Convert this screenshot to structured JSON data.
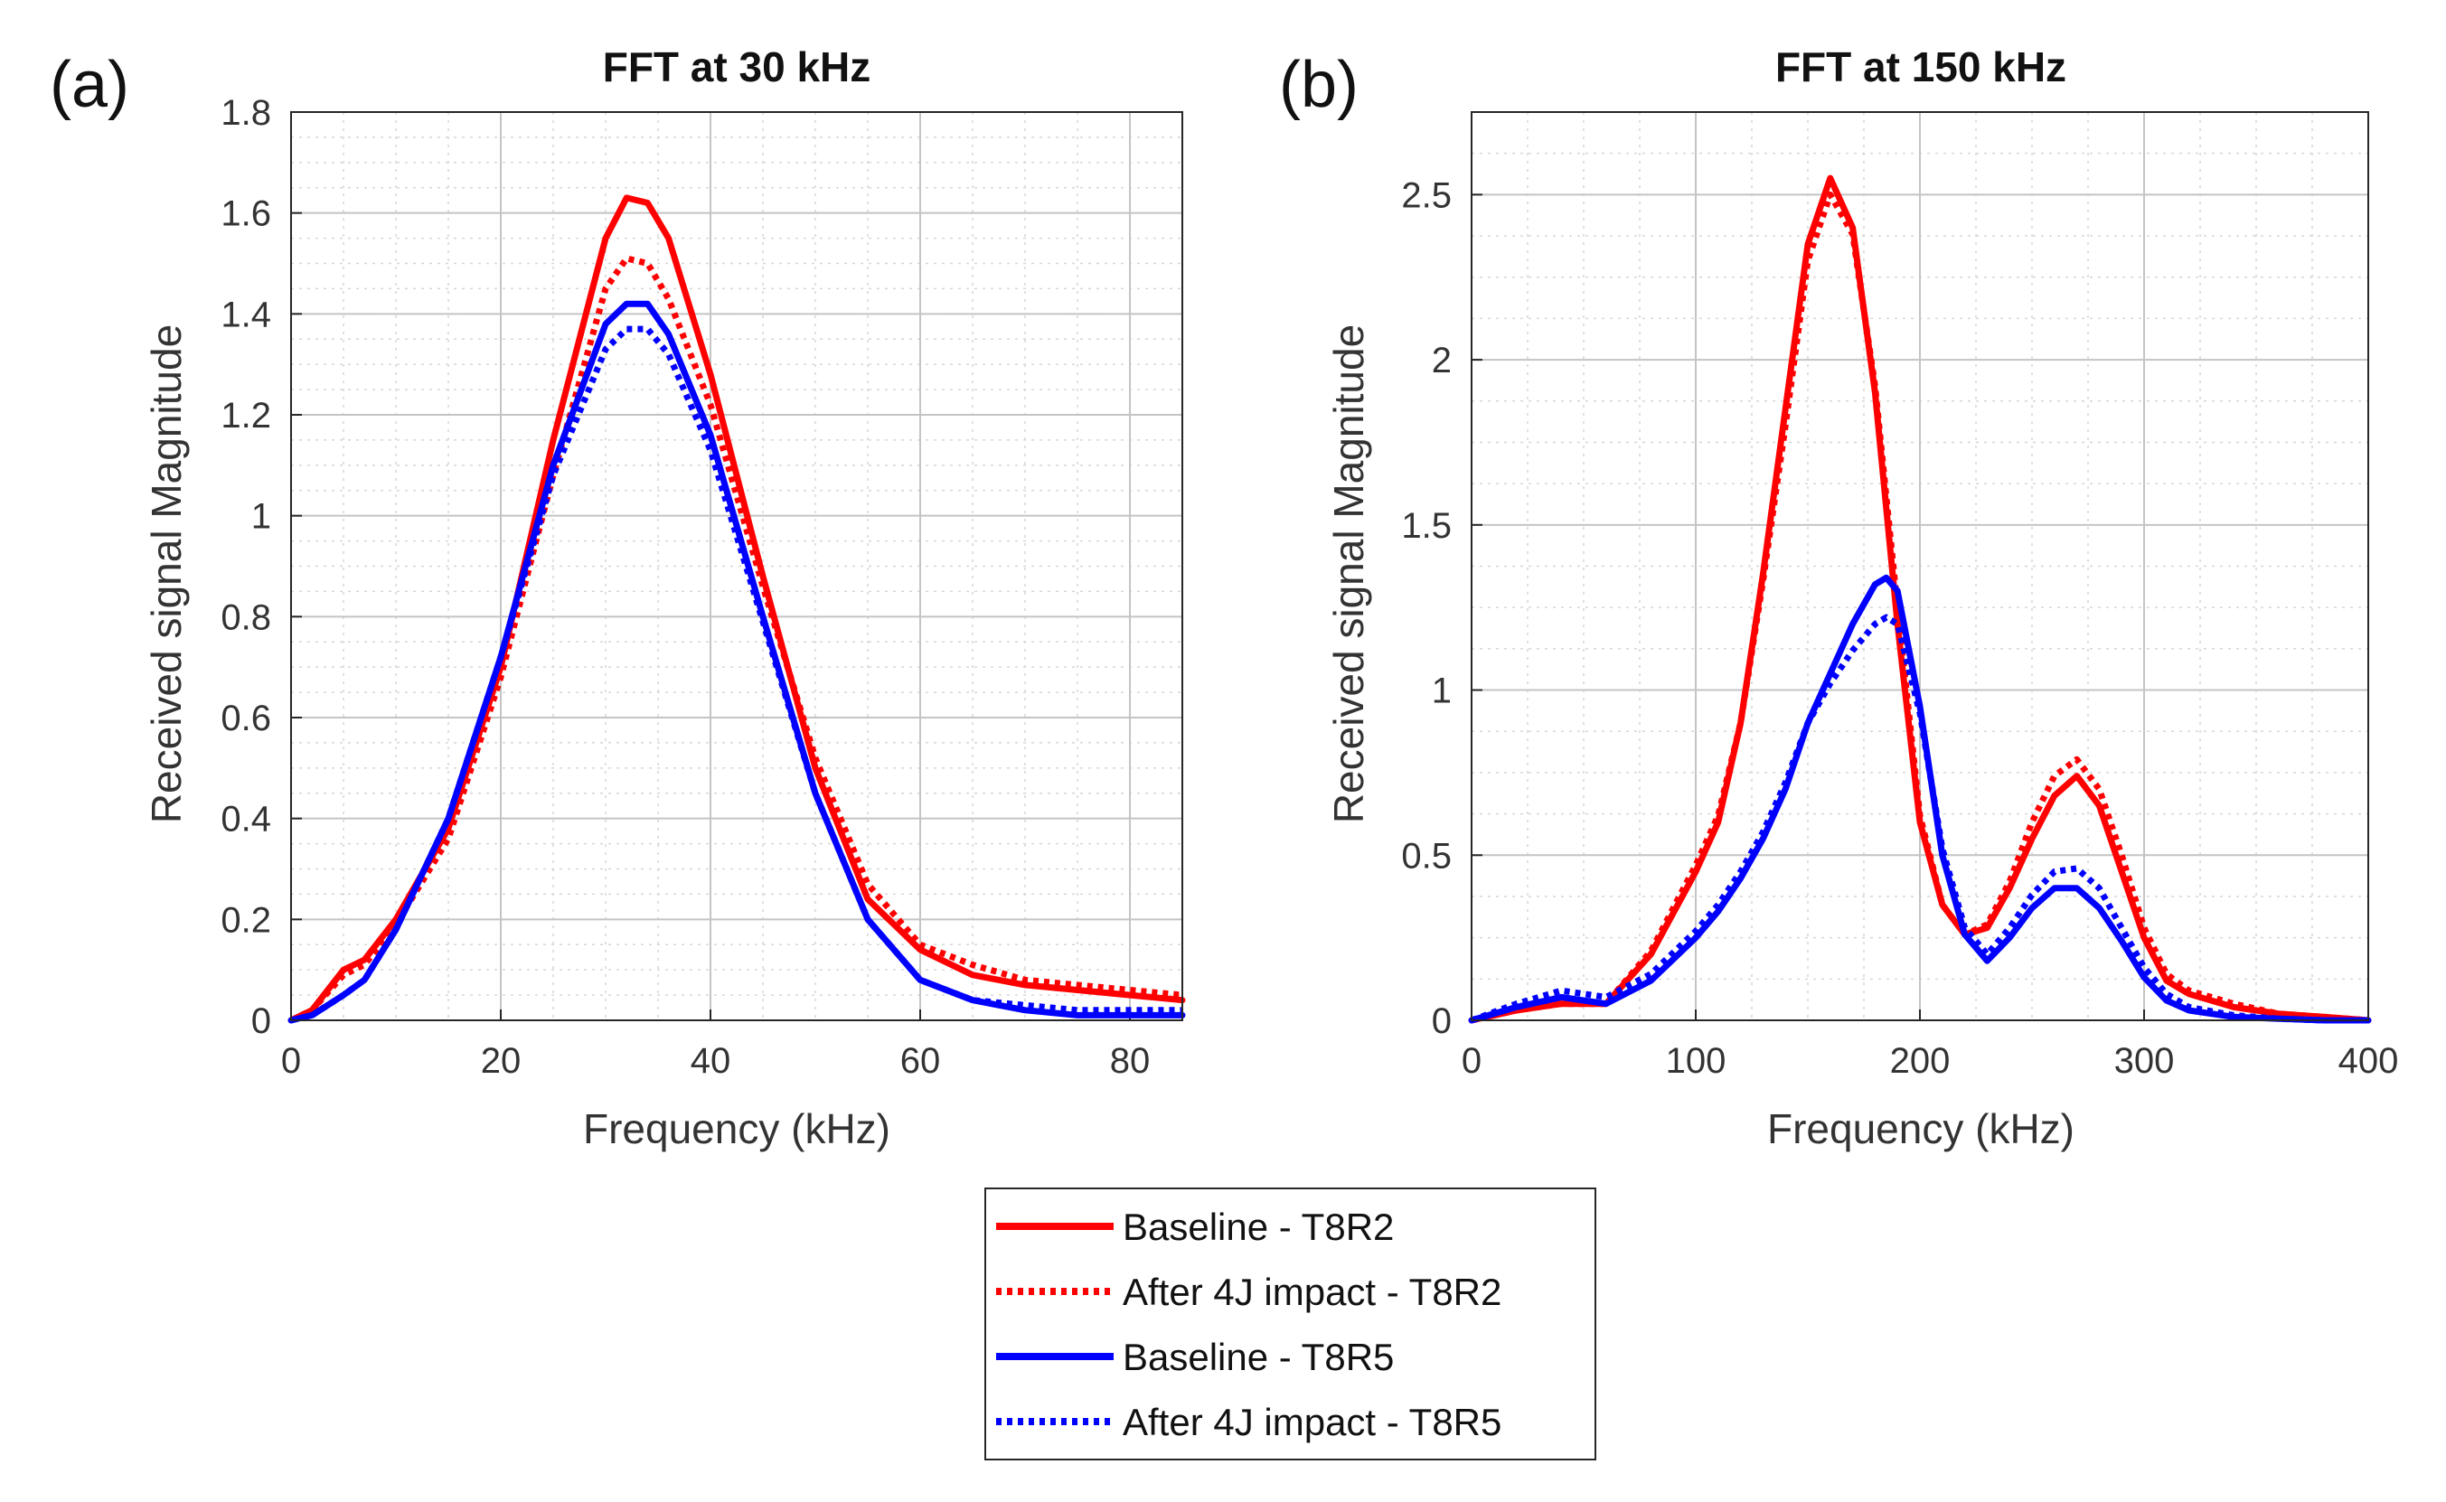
{
  "chart_data": [
    {
      "panel_label": "(a)",
      "type": "line",
      "title": "FFT at 30 kHz",
      "xlabel": "Frequency (kHz)",
      "ylabel": "Received signal Magnitude",
      "xlim": [
        0,
        85
      ],
      "ylim": [
        0,
        1.8
      ],
      "xticks": [
        0,
        20,
        40,
        60,
        80
      ],
      "xtick_labels": [
        "0",
        "20",
        "40",
        "60",
        "80"
      ],
      "yticks": [
        0,
        0.2,
        0.4,
        0.6,
        0.8,
        1,
        1.2,
        1.4,
        1.6,
        1.8
      ],
      "ytick_labels": [
        "0",
        "0.2",
        "0.4",
        "0.6",
        "0.8",
        "1",
        "1.2",
        "1.4",
        "1.6",
        "1.8"
      ],
      "grid": true,
      "series": [
        {
          "name": "Baseline - T8R2",
          "x": [
            0,
            2,
            5,
            7,
            10,
            15,
            20,
            25,
            30,
            32,
            34,
            36,
            40,
            45,
            50,
            55,
            60,
            65,
            70,
            75,
            80,
            85
          ],
          "y": [
            0,
            0.02,
            0.1,
            0.12,
            0.2,
            0.38,
            0.7,
            1.15,
            1.55,
            1.63,
            1.62,
            1.55,
            1.28,
            0.88,
            0.5,
            0.24,
            0.14,
            0.09,
            0.07,
            0.06,
            0.05,
            0.04
          ]
        },
        {
          "name": "After 4J impact - T8R2",
          "x": [
            0,
            2,
            5,
            7,
            10,
            15,
            20,
            25,
            30,
            32,
            34,
            36,
            40,
            45,
            50,
            55,
            60,
            65,
            70,
            75,
            80,
            85
          ],
          "y": [
            0,
            0.02,
            0.09,
            0.11,
            0.19,
            0.36,
            0.68,
            1.08,
            1.45,
            1.51,
            1.5,
            1.43,
            1.22,
            0.86,
            0.52,
            0.27,
            0.15,
            0.11,
            0.08,
            0.07,
            0.06,
            0.05
          ]
        },
        {
          "name": "Baseline - T8R5",
          "x": [
            0,
            2,
            5,
            7,
            10,
            15,
            20,
            25,
            30,
            32,
            34,
            36,
            40,
            45,
            50,
            55,
            60,
            65,
            70,
            75,
            80,
            85
          ],
          "y": [
            0,
            0.01,
            0.05,
            0.08,
            0.18,
            0.4,
            0.72,
            1.1,
            1.38,
            1.42,
            1.42,
            1.36,
            1.16,
            0.8,
            0.45,
            0.2,
            0.08,
            0.04,
            0.02,
            0.01,
            0.01,
            0.01
          ]
        },
        {
          "name": "After 4J impact - T8R5",
          "x": [
            0,
            2,
            5,
            7,
            10,
            15,
            20,
            25,
            30,
            32,
            34,
            36,
            40,
            45,
            50,
            55,
            60,
            65,
            70,
            75,
            80,
            85
          ],
          "y": [
            0,
            0.01,
            0.05,
            0.08,
            0.18,
            0.4,
            0.72,
            1.08,
            1.33,
            1.37,
            1.37,
            1.32,
            1.13,
            0.79,
            0.45,
            0.2,
            0.08,
            0.04,
            0.03,
            0.02,
            0.02,
            0.02
          ]
        }
      ]
    },
    {
      "panel_label": "(b)",
      "type": "line",
      "title": "FFT at 150 kHz",
      "xlabel": "Frequency (kHz)",
      "ylabel": "Received signal Magnitude",
      "xlim": [
        0,
        400
      ],
      "ylim": [
        0,
        2.75
      ],
      "xticks": [
        0,
        100,
        200,
        300,
        400
      ],
      "xtick_labels": [
        "0",
        "100",
        "200",
        "300",
        "400"
      ],
      "yticks": [
        0,
        0.5,
        1,
        1.5,
        2,
        2.5
      ],
      "ytick_labels": [
        "0",
        "0.5",
        "1",
        "1.5",
        "2",
        "2.5"
      ],
      "grid": true,
      "series": [
        {
          "name": "Baseline - T8R2",
          "x": [
            0,
            20,
            40,
            60,
            80,
            100,
            110,
            120,
            130,
            140,
            150,
            160,
            170,
            180,
            190,
            200,
            210,
            220,
            230,
            240,
            250,
            260,
            270,
            280,
            290,
            300,
            310,
            320,
            340,
            360,
            380,
            400
          ],
          "y": [
            0,
            0.03,
            0.05,
            0.05,
            0.2,
            0.45,
            0.6,
            0.9,
            1.35,
            1.85,
            2.35,
            2.55,
            2.4,
            1.9,
            1.2,
            0.6,
            0.35,
            0.26,
            0.28,
            0.4,
            0.55,
            0.68,
            0.74,
            0.65,
            0.45,
            0.25,
            0.12,
            0.08,
            0.04,
            0.02,
            0.01,
            0
          ]
        },
        {
          "name": "After 4J impact - T8R2",
          "x": [
            0,
            20,
            40,
            60,
            80,
            100,
            110,
            120,
            130,
            140,
            150,
            160,
            170,
            180,
            190,
            200,
            210,
            220,
            230,
            240,
            250,
            260,
            270,
            280,
            290,
            300,
            310,
            320,
            340,
            360,
            380,
            400
          ],
          "y": [
            0,
            0.03,
            0.05,
            0.05,
            0.21,
            0.47,
            0.62,
            0.9,
            1.33,
            1.8,
            2.3,
            2.5,
            2.38,
            1.92,
            1.25,
            0.62,
            0.35,
            0.26,
            0.29,
            0.42,
            0.6,
            0.74,
            0.79,
            0.7,
            0.5,
            0.28,
            0.14,
            0.09,
            0.05,
            0.02,
            0.01,
            0
          ]
        },
        {
          "name": "Baseline - T8R5",
          "x": [
            0,
            20,
            40,
            60,
            80,
            100,
            110,
            120,
            130,
            140,
            150,
            160,
            170,
            180,
            185,
            190,
            200,
            210,
            220,
            230,
            240,
            250,
            260,
            270,
            280,
            290,
            300,
            310,
            320,
            340,
            360,
            380,
            400
          ],
          "y": [
            0,
            0.04,
            0.07,
            0.05,
            0.12,
            0.25,
            0.33,
            0.43,
            0.55,
            0.7,
            0.9,
            1.05,
            1.2,
            1.32,
            1.34,
            1.3,
            0.95,
            0.5,
            0.26,
            0.18,
            0.25,
            0.34,
            0.4,
            0.4,
            0.34,
            0.24,
            0.13,
            0.06,
            0.03,
            0.01,
            0.005,
            0,
            0
          ]
        },
        {
          "name": "After 4J impact - T8R5",
          "x": [
            0,
            20,
            40,
            60,
            80,
            100,
            110,
            120,
            130,
            140,
            150,
            160,
            170,
            180,
            185,
            190,
            200,
            210,
            220,
            230,
            240,
            250,
            260,
            270,
            280,
            290,
            300,
            310,
            320,
            340,
            360,
            380,
            400
          ],
          "y": [
            0,
            0.05,
            0.09,
            0.07,
            0.14,
            0.27,
            0.35,
            0.45,
            0.57,
            0.72,
            0.9,
            1.02,
            1.12,
            1.2,
            1.22,
            1.2,
            0.93,
            0.52,
            0.28,
            0.2,
            0.28,
            0.38,
            0.45,
            0.46,
            0.4,
            0.28,
            0.16,
            0.08,
            0.04,
            0.015,
            0.005,
            0,
            0
          ]
        }
      ]
    }
  ],
  "legend": {
    "entries": [
      {
        "label": "Baseline - T8R2",
        "color": "#ff0000",
        "style": "solid"
      },
      {
        "label": "After 4J impact - T8R2",
        "color": "#ff0000",
        "style": "dotted"
      },
      {
        "label": "Baseline - T8R5",
        "color": "#0000ff",
        "style": "solid"
      },
      {
        "label": "After 4J impact - T8R5",
        "color": "#0000ff",
        "style": "dotted"
      }
    ]
  }
}
